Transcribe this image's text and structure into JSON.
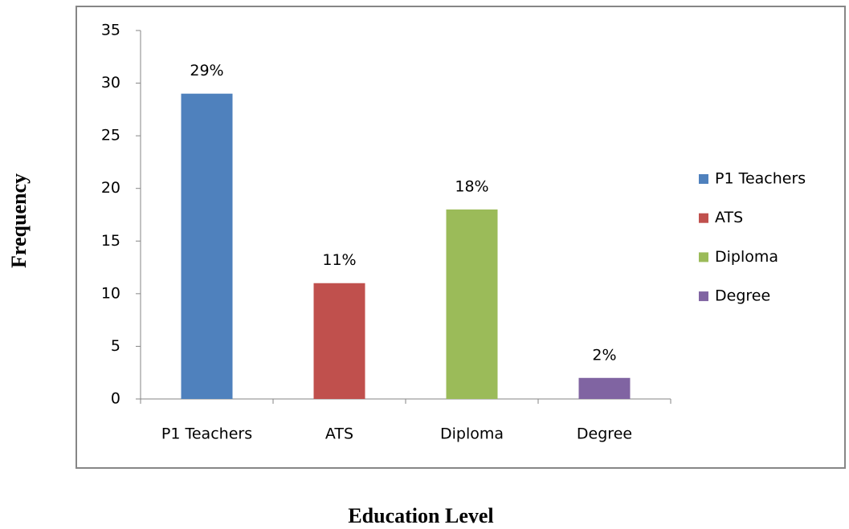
{
  "chart_data": {
    "type": "bar",
    "categories": [
      "P1 Teachers",
      "ATS",
      "Diploma",
      "Degree"
    ],
    "values": [
      29,
      11,
      18,
      2
    ],
    "value_labels": [
      "29%",
      "11%",
      "18%",
      "2%"
    ],
    "colors": [
      "#4f81bd",
      "#c0504d",
      "#9bbb59",
      "#8064a2"
    ],
    "xlabel": "Education Level",
    "ylabel": "Frequency",
    "ylim": [
      0,
      35
    ],
    "yticks": [
      0,
      5,
      10,
      15,
      20,
      25,
      30,
      35
    ],
    "legend": "right"
  }
}
